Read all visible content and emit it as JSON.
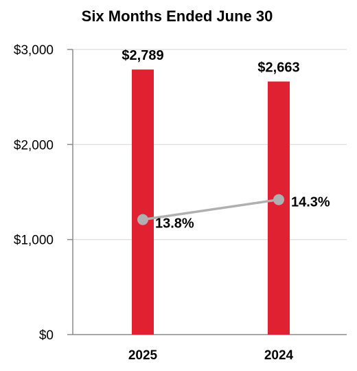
{
  "chart_data": {
    "type": "bar",
    "title": "Six Months Ended June 30",
    "xlabel": "",
    "ylabel": "",
    "categories": [
      "2025",
      "2024"
    ],
    "series": [
      {
        "type": "bar",
        "values": [
          2789,
          2663
        ],
        "data_labels": [
          "$2,789",
          "$2,663"
        ],
        "color": "#e02131"
      },
      {
        "type": "line",
        "values": [
          1210,
          1420
        ],
        "data_labels": [
          "13.8%",
          "14.3%"
        ],
        "color": "#b0b0b0"
      }
    ],
    "ylim": [
      0,
      3000
    ],
    "yticks": [
      0,
      1000,
      2000,
      3000
    ],
    "ytick_labels": [
      "$0",
      "$1,000",
      "$2,000",
      "$3,000"
    ],
    "grid": true,
    "legend": "none"
  }
}
